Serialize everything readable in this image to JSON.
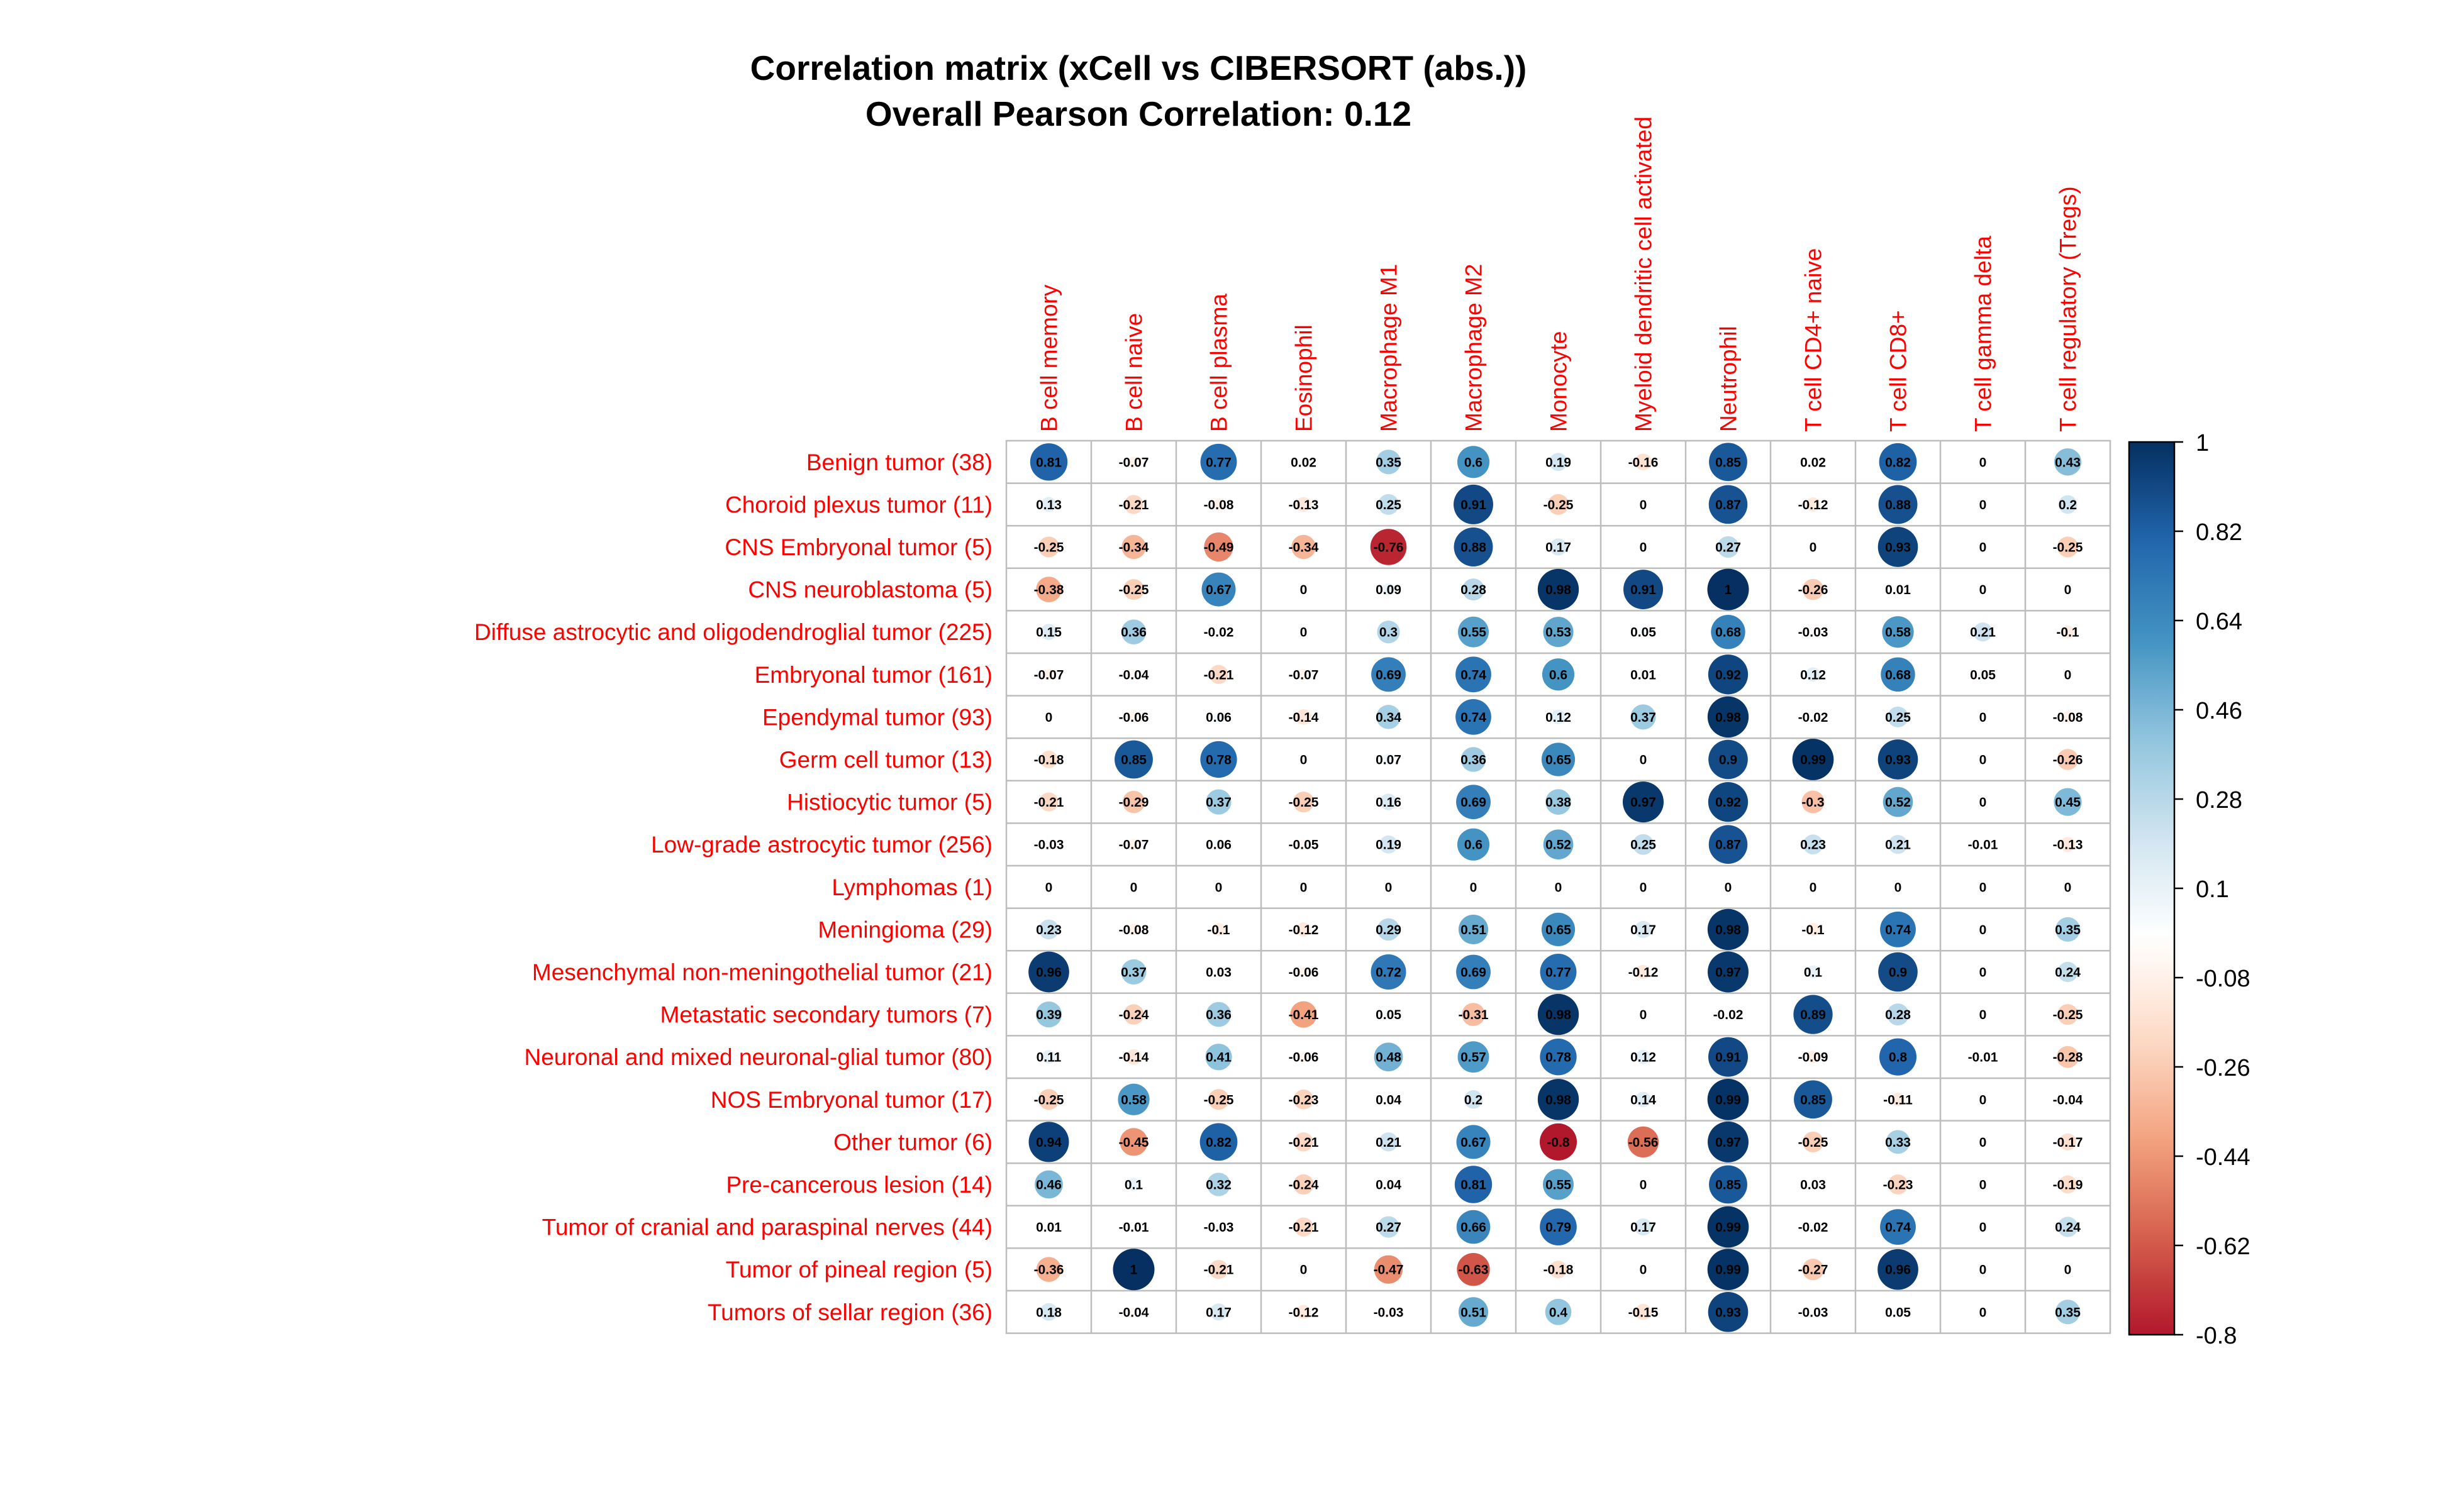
{
  "chart_data": {
    "type": "heatmap",
    "title": "Correlation matrix (xCell vs CIBERSORT (abs.))",
    "subtitle": "Overall Pearson Correlation: 0.12",
    "columns": [
      "B cell memory",
      "B cell naive",
      "B cell plasma",
      "Eosinophil",
      "Macrophage M1",
      "Macrophage M2",
      "Monocyte",
      "Myeloid dendritic cell activated",
      "Neutrophil",
      "T cell CD4+ naive",
      "T cell CD8+",
      "T cell gamma delta",
      "T cell regulatory (Tregs)"
    ],
    "rows": [
      "Benign tumor (38)",
      "Choroid plexus tumor (11)",
      "CNS Embryonal tumor (5)",
      "CNS neuroblastoma (5)",
      "Diffuse astrocytic and oligodendroglial tumor (225)",
      "Embryonal tumor (161)",
      "Ependymal tumor (93)",
      "Germ cell tumor (13)",
      "Histiocytic tumor (5)",
      "Low-grade astrocytic tumor (256)",
      "Lymphomas (1)",
      "Meningioma (29)",
      "Mesenchymal non-meningothelial tumor (21)",
      "Metastatic secondary tumors (7)",
      "Neuronal and mixed neuronal-glial tumor (80)",
      "NOS Embryonal tumor (17)",
      "Other tumor (6)",
      "Pre-cancerous lesion (14)",
      "Tumor of cranial and paraspinal nerves (44)",
      "Tumor of pineal region (5)",
      "Tumors of sellar region (36)"
    ],
    "values": [
      [
        0.81,
        -0.07,
        0.77,
        0.02,
        0.35,
        0.6,
        0.19,
        -0.16,
        0.85,
        0.02,
        0.82,
        0,
        0.43
      ],
      [
        0.13,
        -0.21,
        -0.08,
        -0.13,
        0.25,
        0.91,
        -0.25,
        0,
        0.87,
        -0.12,
        0.88,
        0,
        0.2
      ],
      [
        -0.25,
        -0.34,
        -0.49,
        -0.34,
        -0.76,
        0.88,
        0.17,
        0,
        0.27,
        0,
        0.93,
        0,
        -0.25
      ],
      [
        -0.38,
        -0.25,
        0.67,
        0,
        0.09,
        0.28,
        0.98,
        0.91,
        1,
        -0.26,
        0.01,
        0,
        0
      ],
      [
        0.15,
        0.36,
        -0.02,
        0,
        0.3,
        0.55,
        0.53,
        0.05,
        0.68,
        -0.03,
        0.58,
        0.21,
        -0.1
      ],
      [
        -0.07,
        -0.04,
        -0.21,
        -0.07,
        0.69,
        0.74,
        0.6,
        0.01,
        0.92,
        0.12,
        0.68,
        0.05,
        0
      ],
      [
        0,
        -0.06,
        0.06,
        -0.14,
        0.34,
        0.74,
        0.12,
        0.37,
        0.98,
        -0.02,
        0.25,
        0,
        -0.08
      ],
      [
        -0.18,
        0.85,
        0.78,
        0,
        0.07,
        0.36,
        0.65,
        0,
        0.9,
        0.99,
        0.93,
        0,
        -0.26
      ],
      [
        -0.21,
        -0.29,
        0.37,
        -0.25,
        0.16,
        0.69,
        0.38,
        0.97,
        0.92,
        -0.3,
        0.52,
        0,
        0.45
      ],
      [
        -0.03,
        -0.07,
        0.06,
        -0.05,
        0.19,
        0.6,
        0.52,
        0.25,
        0.87,
        0.23,
        0.21,
        -0.01,
        -0.13
      ],
      [
        0,
        0,
        0,
        0,
        0,
        0,
        0,
        0,
        0,
        0,
        0,
        0,
        0
      ],
      [
        0.23,
        -0.08,
        -0.1,
        -0.12,
        0.29,
        0.51,
        0.65,
        0.17,
        0.98,
        -0.1,
        0.74,
        0,
        0.35
      ],
      [
        0.96,
        0.37,
        0.03,
        -0.06,
        0.72,
        0.69,
        0.77,
        -0.12,
        0.97,
        0.1,
        0.9,
        0,
        0.24
      ],
      [
        0.39,
        -0.24,
        0.36,
        -0.41,
        0.05,
        -0.31,
        0.98,
        0,
        -0.02,
        0.89,
        0.28,
        0,
        -0.25
      ],
      [
        0.11,
        -0.14,
        0.41,
        -0.06,
        0.48,
        0.57,
        0.78,
        0.12,
        0.91,
        -0.09,
        0.8,
        -0.01,
        -0.28
      ],
      [
        -0.25,
        0.58,
        -0.25,
        -0.23,
        0.04,
        0.2,
        0.98,
        0.14,
        0.99,
        0.85,
        -0.11,
        0,
        -0.04
      ],
      [
        0.94,
        -0.45,
        0.82,
        -0.21,
        0.21,
        0.67,
        -0.8,
        -0.56,
        0.97,
        -0.25,
        0.33,
        0,
        -0.17
      ],
      [
        0.46,
        0.1,
        0.32,
        -0.24,
        0.04,
        0.81,
        0.55,
        0,
        0.85,
        0.03,
        -0.23,
        0,
        -0.19
      ],
      [
        0.01,
        -0.01,
        -0.03,
        -0.21,
        0.27,
        0.66,
        0.79,
        0.17,
        0.99,
        -0.02,
        0.74,
        0,
        0.24
      ],
      [
        -0.36,
        1,
        -0.21,
        0,
        -0.47,
        -0.63,
        -0.18,
        0,
        0.99,
        -0.27,
        0.96,
        0,
        0
      ],
      [
        0.18,
        -0.04,
        0.17,
        -0.12,
        -0.03,
        0.51,
        0.4,
        -0.15,
        0.93,
        -0.03,
        0.05,
        0,
        0.35
      ]
    ],
    "color_scale": {
      "min": -0.8,
      "max": 1,
      "ticks": [
        "1",
        "0.82",
        "0.64",
        "0.46",
        "0.28",
        "0.1",
        "-0.08",
        "-0.26",
        "-0.44",
        "-0.62",
        "-0.8"
      ],
      "colors": [
        "#67001F",
        "#B2182B",
        "#D6604D",
        "#F4A582",
        "#FDDBC7",
        "#FFFFFF",
        "#D1E5F0",
        "#92C5DE",
        "#4393C3",
        "#2166AC",
        "#053061"
      ]
    },
    "grid": true,
    "legend_position": "right"
  }
}
